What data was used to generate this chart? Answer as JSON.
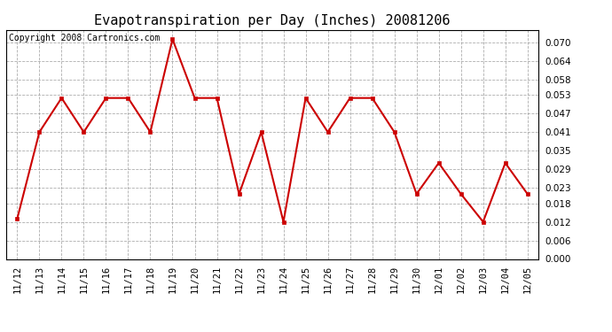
{
  "title": "Evapotranspiration per Day (Inches) 20081206",
  "copyright_text": "Copyright 2008 Cartronics.com",
  "dates": [
    "11/12",
    "11/13",
    "11/14",
    "11/15",
    "11/16",
    "11/17",
    "11/18",
    "11/19",
    "11/20",
    "11/21",
    "11/22",
    "11/23",
    "11/24",
    "11/25",
    "11/26",
    "11/27",
    "11/28",
    "11/29",
    "11/30",
    "12/01",
    "12/02",
    "12/03",
    "12/04",
    "12/05"
  ],
  "values": [
    0.013,
    0.041,
    0.052,
    0.041,
    0.052,
    0.052,
    0.041,
    0.071,
    0.052,
    0.052,
    0.021,
    0.041,
    0.012,
    0.052,
    0.041,
    0.052,
    0.052,
    0.041,
    0.021,
    0.031,
    0.021,
    0.012,
    0.031,
    0.021
  ],
  "line_color": "#cc0000",
  "marker_color": "#cc0000",
  "bg_color": "#ffffff",
  "grid_color": "#999999",
  "ylim": [
    0.0,
    0.074
  ],
  "yticks": [
    0.0,
    0.006,
    0.012,
    0.018,
    0.023,
    0.029,
    0.035,
    0.041,
    0.047,
    0.053,
    0.058,
    0.064,
    0.07
  ],
  "title_fontsize": 11,
  "copyright_fontsize": 7,
  "tick_fontsize": 7.5
}
